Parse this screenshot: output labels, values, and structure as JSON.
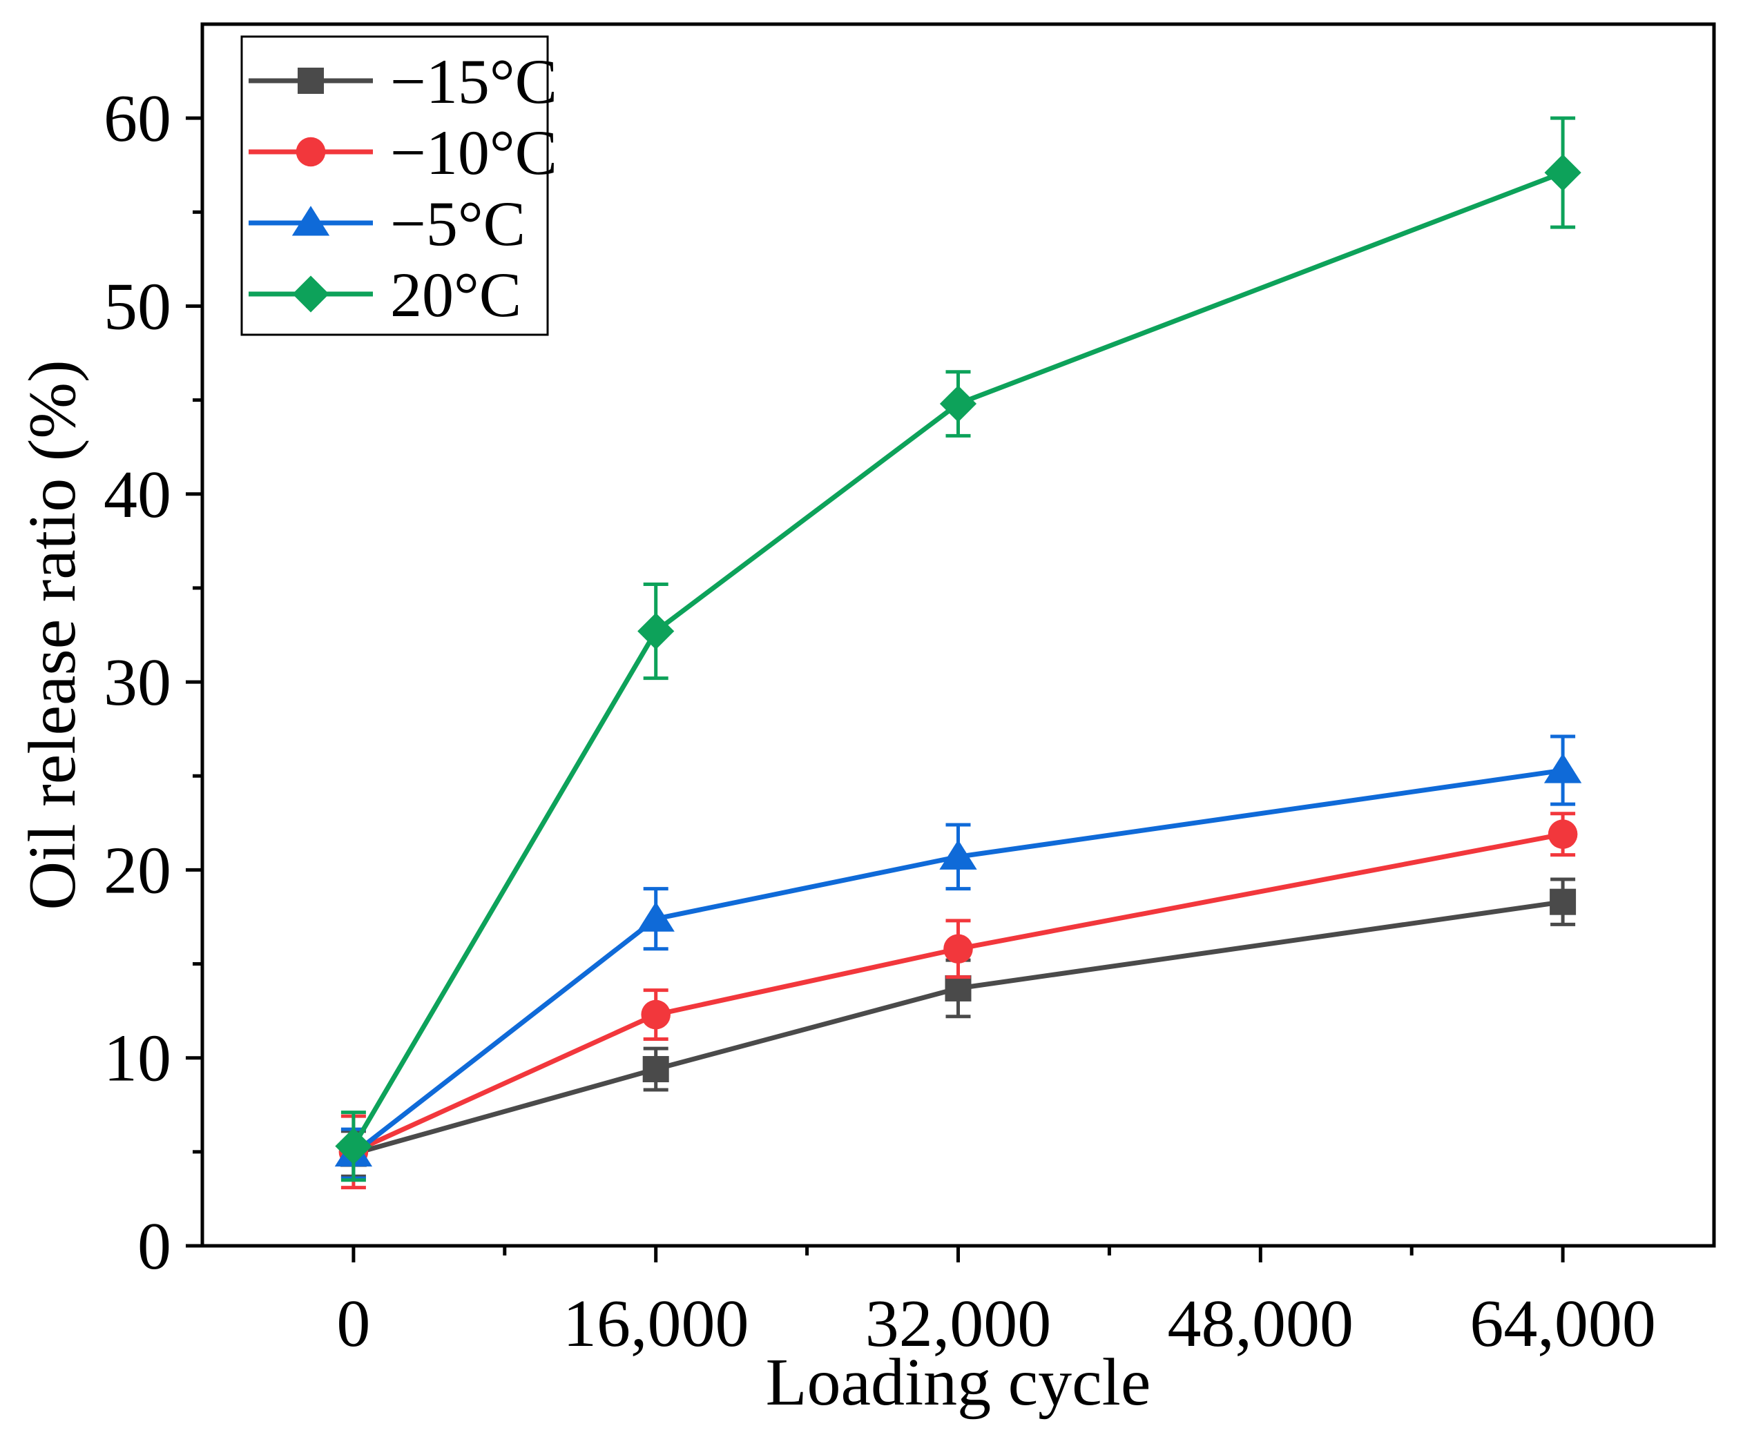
{
  "chart_data": {
    "type": "line",
    "title": "",
    "xlabel": "Loading cycle",
    "ylabel": "Oil release ratio (%)",
    "x": [
      0,
      16000,
      32000,
      64000
    ],
    "xlim": [
      -8000,
      72000
    ],
    "ylim": [
      0,
      65
    ],
    "x_ticks": [
      0,
      16000,
      32000,
      48000,
      64000
    ],
    "x_tick_labels": [
      "0",
      "16,000",
      "32,000",
      "48,000",
      "64,000"
    ],
    "y_ticks": [
      0,
      10,
      20,
      30,
      40,
      50,
      60
    ],
    "y_tick_labels": [
      "0",
      "10",
      "20",
      "30",
      "40",
      "50",
      "60"
    ],
    "grid": false,
    "legend_position": "top-left",
    "series": [
      {
        "name": "−15°C",
        "color": "#4a4a4a",
        "marker": "square",
        "values": [
          4.9,
          9.4,
          13.7,
          18.3
        ],
        "errors": [
          1.2,
          1.1,
          1.5,
          1.2
        ]
      },
      {
        "name": "−10°C",
        "color": "#f2373c",
        "marker": "circle",
        "values": [
          5.0,
          12.3,
          15.8,
          21.9
        ],
        "errors": [
          1.9,
          1.3,
          1.5,
          1.1
        ]
      },
      {
        "name": "−5°C",
        "color": "#0f6ad8",
        "marker": "triangle",
        "values": [
          4.9,
          17.4,
          20.7,
          25.3
        ],
        "errors": [
          1.3,
          1.6,
          1.7,
          1.8
        ]
      },
      {
        "name": "20°C",
        "color": "#0da25a",
        "marker": "diamond",
        "values": [
          5.3,
          32.7,
          44.8,
          57.1
        ],
        "errors": [
          1.8,
          2.5,
          1.7,
          2.9
        ]
      }
    ]
  }
}
